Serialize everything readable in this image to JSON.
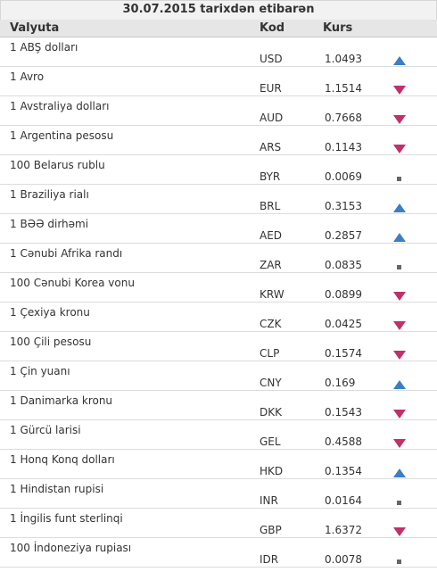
{
  "header": {
    "date_title": "30.07.2015 tarixdən etibarən",
    "col_currency": "Valyuta",
    "col_code": "Kod",
    "col_rate": "Kurs"
  },
  "colors": {
    "up": "#3a7fc1",
    "down": "#c0306a",
    "same": "#666666"
  },
  "rows": [
    {
      "name": "1 ABŞ dolları",
      "code": "USD",
      "rate": "1.0493",
      "trend": "up"
    },
    {
      "name": "1 Avro",
      "code": "EUR",
      "rate": "1.1514",
      "trend": "down"
    },
    {
      "name": "1 Avstraliya dolları",
      "code": "AUD",
      "rate": "0.7668",
      "trend": "down"
    },
    {
      "name": "1 Argentina pesosu",
      "code": "ARS",
      "rate": "0.1143",
      "trend": "down"
    },
    {
      "name": "100 Belarus rublu",
      "code": "BYR",
      "rate": "0.0069",
      "trend": "same"
    },
    {
      "name": "1 Braziliya rialı",
      "code": "BRL",
      "rate": "0.3153",
      "trend": "up"
    },
    {
      "name": "1 BƏƏ dirhəmi",
      "code": "AED",
      "rate": "0.2857",
      "trend": "up"
    },
    {
      "name": "1 Cənubi Afrika randı",
      "code": "ZAR",
      "rate": "0.0835",
      "trend": "same"
    },
    {
      "name": "100 Cənubi Korea vonu",
      "code": "KRW",
      "rate": "0.0899",
      "trend": "down"
    },
    {
      "name": "1 Çexiya kronu",
      "code": "CZK",
      "rate": "0.0425",
      "trend": "down"
    },
    {
      "name": "100 Çili pesosu",
      "code": "CLP",
      "rate": "0.1574",
      "trend": "down"
    },
    {
      "name": "1 Çin yuanı",
      "code": "CNY",
      "rate": "0.169",
      "trend": "up"
    },
    {
      "name": "1 Danimarka kronu",
      "code": "DKK",
      "rate": "0.1543",
      "trend": "down"
    },
    {
      "name": "1 Gürcü larisi",
      "code": "GEL",
      "rate": "0.4588",
      "trend": "down"
    },
    {
      "name": "1 Honq Konq dolları",
      "code": "HKD",
      "rate": "0.1354",
      "trend": "up"
    },
    {
      "name": "1 Hindistan rupisi",
      "code": "INR",
      "rate": "0.0164",
      "trend": "same"
    },
    {
      "name": "1 İngilis funt sterlinqi",
      "code": "GBP",
      "rate": "1.6372",
      "trend": "down"
    },
    {
      "name": "100 İndoneziya rupiası",
      "code": "IDR",
      "rate": "0.0078",
      "trend": "same"
    }
  ]
}
